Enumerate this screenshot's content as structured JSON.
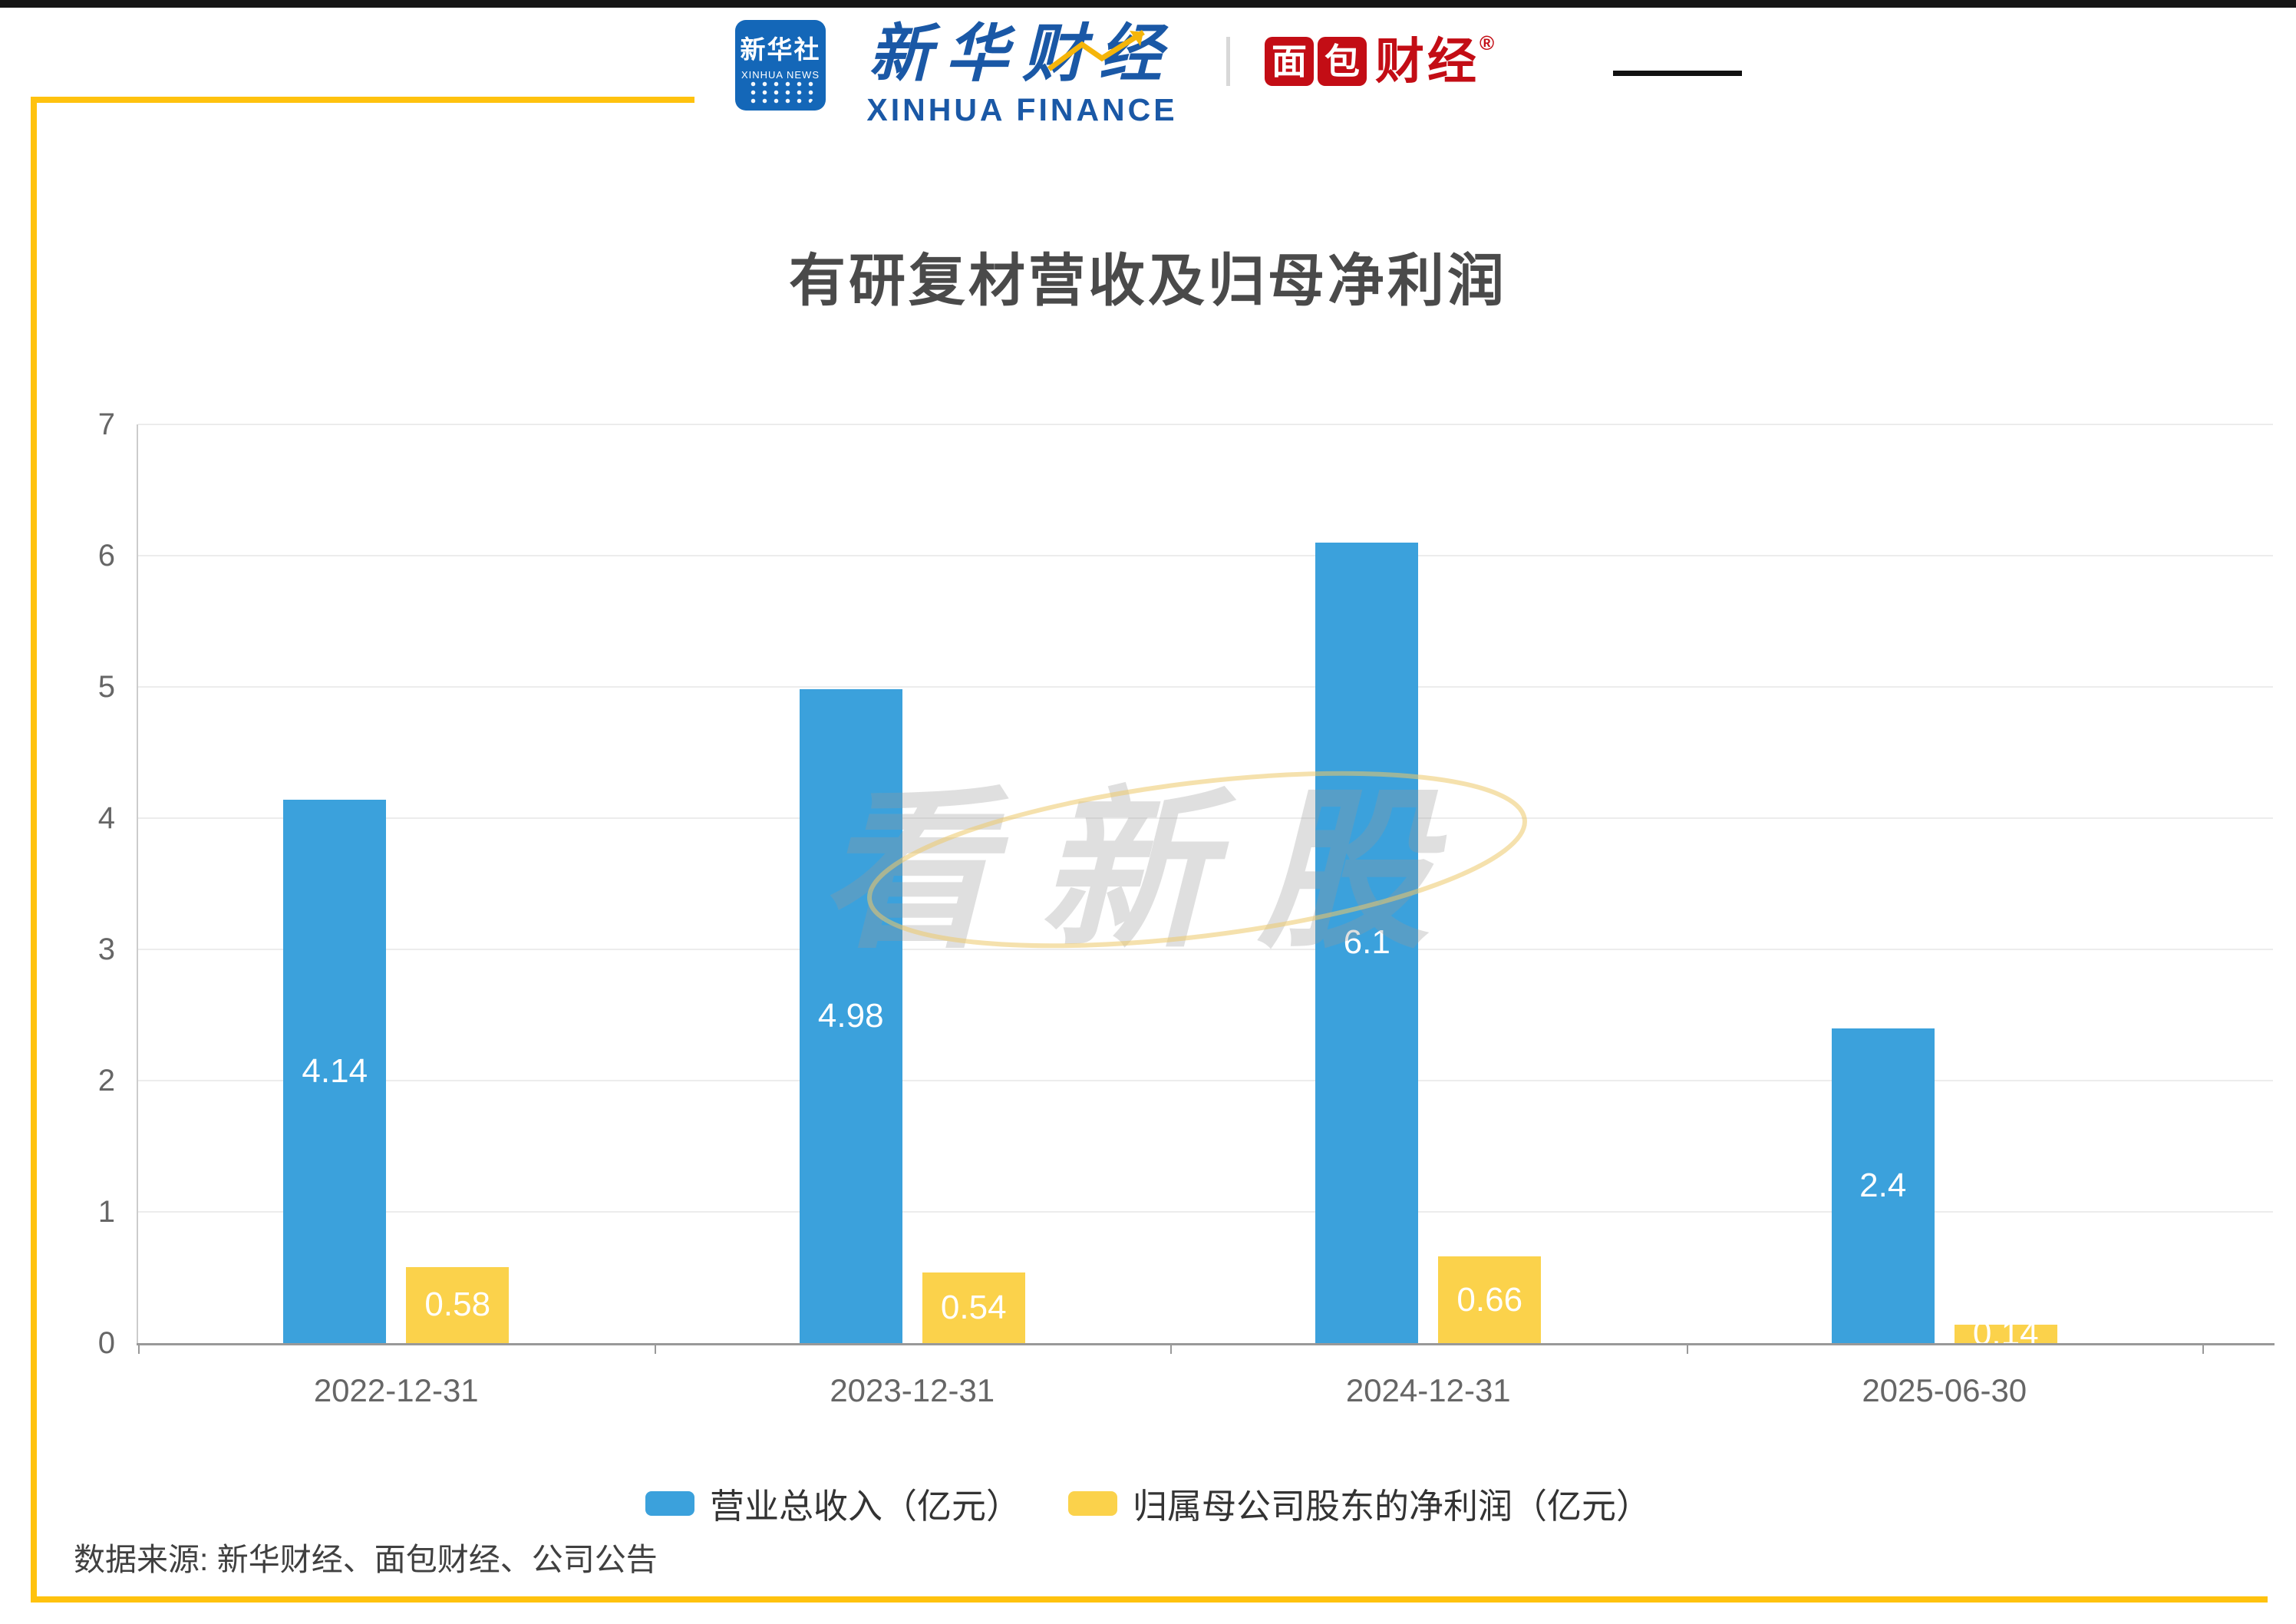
{
  "colors": {
    "topbar": "#161616",
    "frame": "#ffc20e",
    "logo_blue": "#1467b8",
    "brand_blue": "#1a58a6",
    "brand_red": "#c30d15",
    "bar_blue": "#3ba1dc",
    "bar_yellow": "#fbd24b",
    "title_text": "#4a4a4a",
    "axis_text": "#666666",
    "grid": "#ececec",
    "axis_line": "#999999",
    "y_axis_line": "#cccccc",
    "legend_text": "#333333",
    "source_text": "#404040",
    "watermark": "#999999",
    "swoosh": "#edc96a"
  },
  "header": {
    "xinhua_news_cn": "新华社",
    "xinhua_news_en": "XINHUA NEWS",
    "xinhua_finance_cn": "新华财经",
    "xinhua_finance_en": "XINHUA FINANCE",
    "mianbao_char1": "面",
    "mianbao_char2": "包",
    "mianbao_rest": "财经",
    "registered": "®"
  },
  "chart_data": {
    "type": "bar",
    "title": "有研复材营收及归母净利润",
    "categories": [
      "2022-12-31",
      "2023-12-31",
      "2024-12-31",
      "2025-06-30"
    ],
    "series": [
      {
        "name": "营业总收入（亿元）",
        "color": "#3ba1dc",
        "values": [
          4.14,
          4.98,
          6.1,
          2.4
        ]
      },
      {
        "name": "归属母公司股东的净利润（亿元）",
        "color": "#fbd24b",
        "values": [
          0.58,
          0.54,
          0.66,
          0.14
        ]
      }
    ],
    "ylim": [
      0,
      7
    ],
    "yticks": [
      0,
      1,
      2,
      3,
      4,
      5,
      6,
      7
    ],
    "grid": true,
    "legend_position": "bottom",
    "watermark": "看新股"
  },
  "footer": {
    "source": "数据来源: 新华财经、面包财经、公司公告"
  }
}
